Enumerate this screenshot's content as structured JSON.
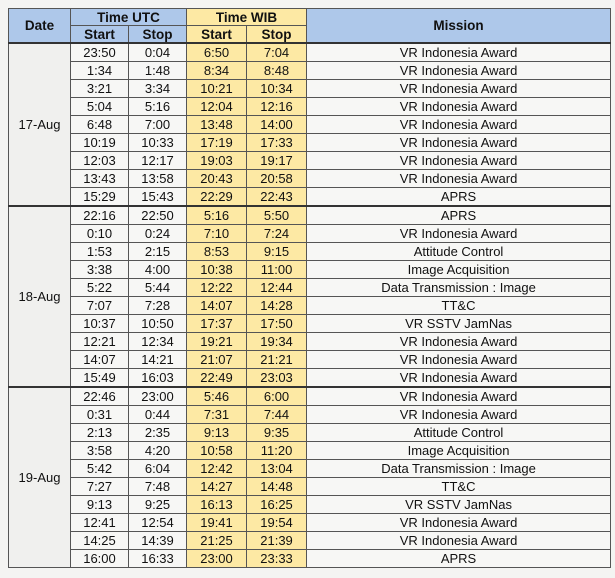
{
  "table": {
    "headers": {
      "date": "Date",
      "utc": "Time UTC",
      "wib": "Time WIB",
      "mission": "Mission",
      "start": "Start",
      "stop": "Stop"
    },
    "groups": [
      {
        "date": "17-Aug",
        "rows": [
          [
            "23:50",
            "0:04",
            "6:50",
            "7:04",
            "VR Indonesia Award"
          ],
          [
            "1:34",
            "1:48",
            "8:34",
            "8:48",
            "VR Indonesia Award"
          ],
          [
            "3:21",
            "3:34",
            "10:21",
            "10:34",
            "VR Indonesia Award"
          ],
          [
            "5:04",
            "5:16",
            "12:04",
            "12:16",
            "VR Indonesia Award"
          ],
          [
            "6:48",
            "7:00",
            "13:48",
            "14:00",
            "VR Indonesia Award"
          ],
          [
            "10:19",
            "10:33",
            "17:19",
            "17:33",
            "VR Indonesia Award"
          ],
          [
            "12:03",
            "12:17",
            "19:03",
            "19:17",
            "VR Indonesia Award"
          ],
          [
            "13:43",
            "13:58",
            "20:43",
            "20:58",
            "VR Indonesia Award"
          ],
          [
            "15:29",
            "15:43",
            "22:29",
            "22:43",
            "APRS"
          ]
        ]
      },
      {
        "date": "18-Aug",
        "rows": [
          [
            "22:16",
            "22:50",
            "5:16",
            "5:50",
            "APRS"
          ],
          [
            "0:10",
            "0:24",
            "7:10",
            "7:24",
            "VR Indonesia Award"
          ],
          [
            "1:53",
            "2:15",
            "8:53",
            "9:15",
            "Attitude Control"
          ],
          [
            "3:38",
            "4:00",
            "10:38",
            "11:00",
            "Image Acquisition"
          ],
          [
            "5:22",
            "5:44",
            "12:22",
            "12:44",
            "Data Transmission : Image"
          ],
          [
            "7:07",
            "7:28",
            "14:07",
            "14:28",
            "TT&C"
          ],
          [
            "10:37",
            "10:50",
            "17:37",
            "17:50",
            "VR SSTV JamNas"
          ],
          [
            "12:21",
            "12:34",
            "19:21",
            "19:34",
            "VR Indonesia Award"
          ],
          [
            "14:07",
            "14:21",
            "21:07",
            "21:21",
            "VR Indonesia Award"
          ],
          [
            "15:49",
            "16:03",
            "22:49",
            "23:03",
            "VR Indonesia Award"
          ]
        ]
      },
      {
        "date": "19-Aug",
        "rows": [
          [
            "22:46",
            "23:00",
            "5:46",
            "6:00",
            "VR Indonesia Award"
          ],
          [
            "0:31",
            "0:44",
            "7:31",
            "7:44",
            "VR Indonesia Award"
          ],
          [
            "2:13",
            "2:35",
            "9:13",
            "9:35",
            "Attitude Control"
          ],
          [
            "3:58",
            "4:20",
            "10:58",
            "11:20",
            "Image Acquisition"
          ],
          [
            "5:42",
            "6:04",
            "12:42",
            "13:04",
            "Data Transmission : Image"
          ],
          [
            "7:27",
            "7:48",
            "14:27",
            "14:48",
            "TT&C"
          ],
          [
            "9:13",
            "9:25",
            "16:13",
            "16:25",
            "VR SSTV JamNas"
          ],
          [
            "12:41",
            "12:54",
            "19:41",
            "19:54",
            "VR Indonesia Award"
          ],
          [
            "14:25",
            "14:39",
            "21:25",
            "21:39",
            "VR Indonesia Award"
          ],
          [
            "16:00",
            "16:33",
            "23:00",
            "23:33",
            "APRS"
          ]
        ]
      }
    ]
  }
}
